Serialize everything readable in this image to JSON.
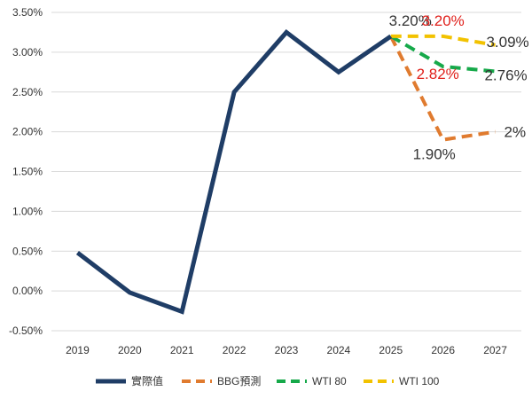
{
  "chart_data": {
    "type": "line",
    "title": "",
    "xlabel": "",
    "ylabel": "",
    "categories": [
      "2019",
      "2020",
      "2021",
      "2022",
      "2023",
      "2024",
      "2025",
      "2026",
      "2027"
    ],
    "ylim": [
      -0.5,
      3.5
    ],
    "yticks": [
      {
        "value": -0.5,
        "label": "-0.50%"
      },
      {
        "value": 0.0,
        "label": "0.00%"
      },
      {
        "value": 0.5,
        "label": "0.50%"
      },
      {
        "value": 1.0,
        "label": "1.00%"
      },
      {
        "value": 1.5,
        "label": "1.50%"
      },
      {
        "value": 2.0,
        "label": "2.00%"
      },
      {
        "value": 2.5,
        "label": "2.50%"
      },
      {
        "value": 3.0,
        "label": "3.00%"
      },
      {
        "value": 3.5,
        "label": "3.50%"
      }
    ],
    "grid": true,
    "legend_position": "bottom",
    "series": [
      {
        "name": "實際值",
        "color": "#1f3d66",
        "dashed": false,
        "values": [
          0.48,
          -0.02,
          -0.26,
          2.5,
          3.25,
          2.75,
          3.2,
          null,
          null
        ]
      },
      {
        "name": "BBG預測",
        "color": "#e07b2f",
        "dashed": true,
        "values": [
          null,
          null,
          null,
          null,
          null,
          null,
          3.2,
          1.9,
          2.0
        ]
      },
      {
        "name": "WTI 80",
        "color": "#16a94a",
        "dashed": true,
        "values": [
          null,
          null,
          null,
          null,
          null,
          null,
          3.2,
          2.82,
          2.76
        ]
      },
      {
        "name": "WTI 100",
        "color": "#f2c200",
        "dashed": true,
        "values": [
          null,
          null,
          null,
          null,
          null,
          null,
          3.2,
          3.2,
          3.09
        ]
      }
    ],
    "data_labels": [
      {
        "text": "3.20%",
        "x_index": 6,
        "value": 3.2,
        "color": "#333333",
        "anchor": "end",
        "side": "above"
      },
      {
        "text": "3.20%",
        "x_index": 7,
        "value": 3.2,
        "color": "#e0201b",
        "anchor": "middle",
        "side": "above"
      },
      {
        "text": "3.09%",
        "x_index": 8,
        "value": 3.09,
        "color": "#333333",
        "anchor": "middle",
        "side": "right"
      },
      {
        "text": "2.82%",
        "x_index": 7,
        "value": 2.82,
        "color": "#e0201b",
        "anchor": "middle",
        "side": "below"
      },
      {
        "text": "2.76%",
        "x_index": 8,
        "value": 2.76,
        "color": "#333333",
        "anchor": "middle",
        "side": "right"
      },
      {
        "text": "1.90%",
        "x_index": 7,
        "value": 1.9,
        "color": "#333333",
        "anchor": "middle",
        "side": "below"
      },
      {
        "text": "2%",
        "x_index": 8,
        "value": 2.0,
        "color": "#333333",
        "anchor": "start",
        "side": "right"
      }
    ]
  }
}
